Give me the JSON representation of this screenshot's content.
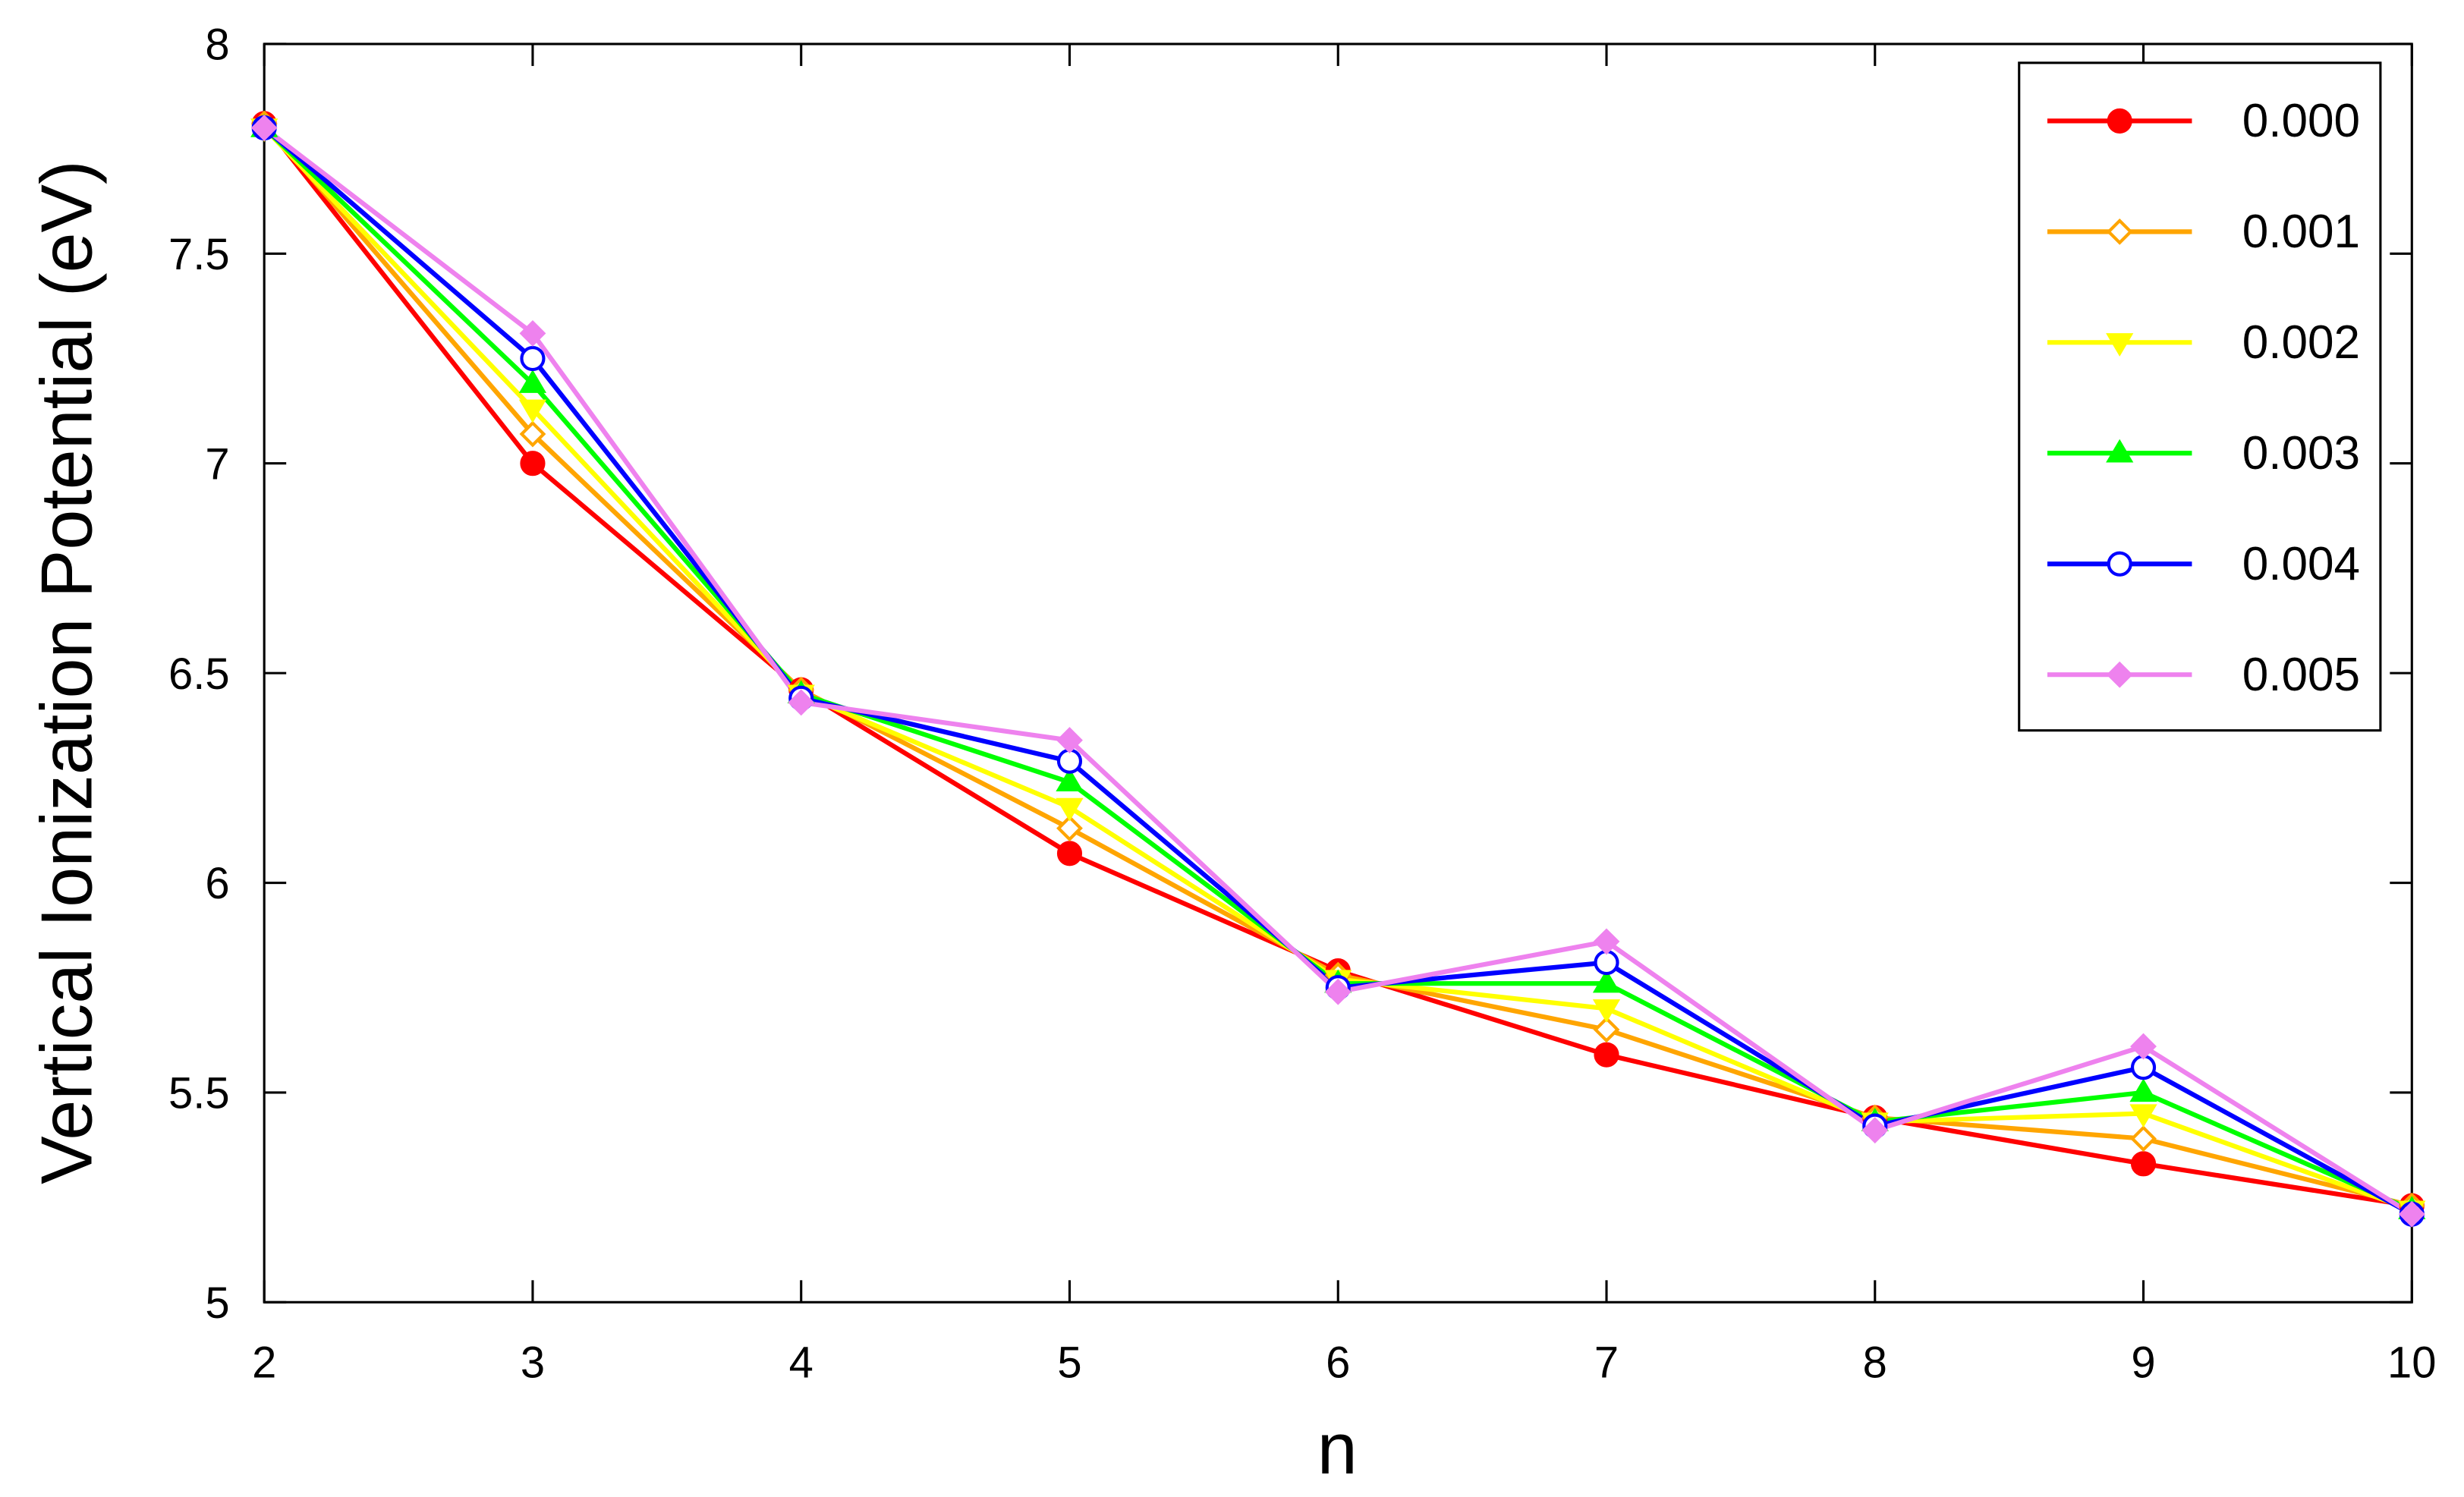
{
  "chart_data": {
    "type": "line",
    "xlabel": "n",
    "ylabel": "Vertical Ionization Potential (eV)",
    "x": [
      2,
      3,
      4,
      5,
      6,
      7,
      8,
      9,
      10
    ],
    "xlim": [
      2,
      10
    ],
    "xticks": [
      2,
      3,
      4,
      5,
      6,
      7,
      8,
      9,
      10
    ],
    "ylim": [
      5,
      8
    ],
    "yticks": [
      5,
      5.5,
      6,
      6.5,
      7,
      7.5,
      8
    ],
    "legend": "upper right",
    "series": [
      {
        "name": "0.000",
        "color": "#ff0000",
        "marker": "circle-filled",
        "values": [
          7.81,
          7.0,
          6.46,
          6.07,
          5.79,
          5.59,
          5.44,
          5.33,
          5.23
        ]
      },
      {
        "name": "0.001",
        "color": "#ffa500",
        "marker": "diamond-open",
        "values": [
          7.81,
          7.07,
          6.46,
          6.13,
          5.78,
          5.65,
          5.44,
          5.39,
          5.23
        ]
      },
      {
        "name": "0.002",
        "color": "#ffff00",
        "marker": "triangle-down-filled",
        "values": [
          7.8,
          7.13,
          6.45,
          6.18,
          5.77,
          5.7,
          5.43,
          5.45,
          5.22
        ]
      },
      {
        "name": "0.003",
        "color": "#00ff00",
        "marker": "triangle-up-filled",
        "values": [
          7.8,
          7.19,
          6.45,
          6.24,
          5.76,
          5.76,
          5.43,
          5.5,
          5.22
        ]
      },
      {
        "name": "0.004",
        "color": "#0000ff",
        "marker": "circle-open",
        "values": [
          7.8,
          7.25,
          6.44,
          6.29,
          5.75,
          5.81,
          5.42,
          5.56,
          5.21
        ]
      },
      {
        "name": "0.005",
        "color": "#ee82ee",
        "marker": "diamond-filled",
        "values": [
          7.8,
          7.31,
          6.43,
          6.34,
          5.74,
          5.86,
          5.41,
          5.61,
          5.21
        ]
      }
    ]
  }
}
